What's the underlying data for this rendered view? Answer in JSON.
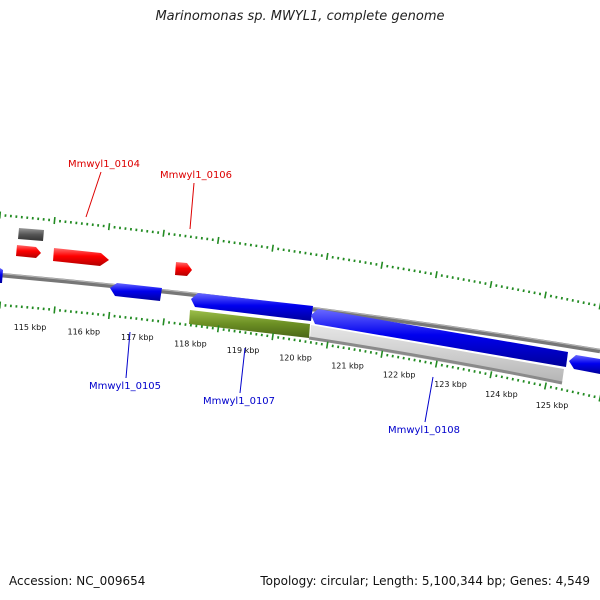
{
  "title": "Marinomonas sp. MWYL1, complete genome",
  "footer": {
    "accession": "Accession: NC_009654",
    "summary": "Topology: circular; Length: 5,100,344 bp; Genes: 4,549"
  },
  "colors": {
    "forward_gene": "#ff0000",
    "reverse_gene": "#0000ee",
    "other_feature": "#555555",
    "selected_gene": "#6b8e23",
    "selected_region": "#cccccc",
    "backbone": "#777777",
    "tick": "#228b22"
  },
  "tick_labels": [
    "115 kbp",
    "116 kbp",
    "117 kbp",
    "118 kbp",
    "119 kbp",
    "120 kbp",
    "121 kbp",
    "122 kbp",
    "123 kbp",
    "124 kbp",
    "125 kbp"
  ],
  "gene_labels": {
    "g0104": "Mmwyl1_0104",
    "g0106": "Mmwyl1_0106",
    "g0105": "Mmwyl1_0105",
    "g0107": "Mmwyl1_0107",
    "g0108": "Mmwyl1_0108"
  }
}
